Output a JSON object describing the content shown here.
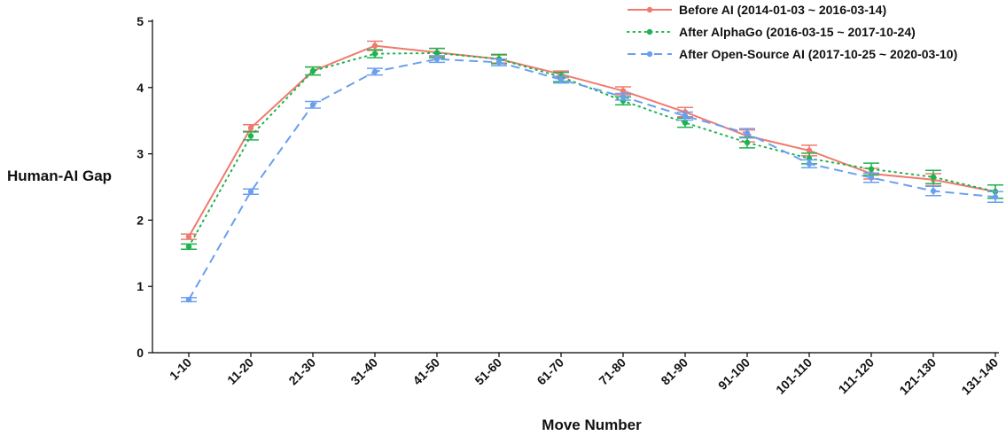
{
  "chart_data": {
    "type": "line",
    "xlabel": "Move Number",
    "ylabel": "Human-AI Gap",
    "ylim": [
      0,
      5
    ],
    "yticks": [
      0,
      1,
      2,
      3,
      4,
      5
    ],
    "categories": [
      "1-10",
      "11-20",
      "21-30",
      "31-40",
      "41-50",
      "51-60",
      "61-70",
      "71-80",
      "81-90",
      "91-100",
      "101-110",
      "111-120",
      "121-130",
      "131-140"
    ],
    "legend_position": "top-right",
    "series": [
      {
        "name": "Before AI (2014-01-03 ~ 2016-03-14)",
        "color": "#F07A6E",
        "dash": "solid",
        "values": [
          1.75,
          3.39,
          4.25,
          4.63,
          4.53,
          4.43,
          4.2,
          3.95,
          3.63,
          3.27,
          3.05,
          2.7,
          2.61,
          2.43
        ],
        "errors": [
          0.04,
          0.05,
          0.06,
          0.07,
          0.06,
          0.06,
          0.05,
          0.06,
          0.07,
          0.09,
          0.08,
          0.08,
          0.09,
          0.1
        ]
      },
      {
        "name": "After AlphaGo (2016-03-15 ~ 2017-10-24)",
        "color": "#1DB34F",
        "dash": "dotted",
        "values": [
          1.6,
          3.27,
          4.25,
          4.51,
          4.52,
          4.43,
          4.16,
          3.8,
          3.47,
          3.17,
          2.93,
          2.77,
          2.65,
          2.43
        ],
        "errors": [
          0.04,
          0.06,
          0.06,
          0.06,
          0.07,
          0.07,
          0.07,
          0.06,
          0.07,
          0.08,
          0.08,
          0.09,
          0.1,
          0.1
        ]
      },
      {
        "name": "After Open-Source AI (2017-10-25 ~ 2020-03-10)",
        "color": "#6A9FF0",
        "dash": "dashed",
        "values": [
          0.8,
          2.43,
          3.74,
          4.24,
          4.43,
          4.38,
          4.12,
          3.86,
          3.57,
          3.31,
          2.85,
          2.64,
          2.44,
          2.35
        ],
        "errors": [
          0.03,
          0.04,
          0.05,
          0.05,
          0.05,
          0.05,
          0.05,
          0.05,
          0.06,
          0.07,
          0.06,
          0.07,
          0.07,
          0.08
        ]
      }
    ]
  }
}
